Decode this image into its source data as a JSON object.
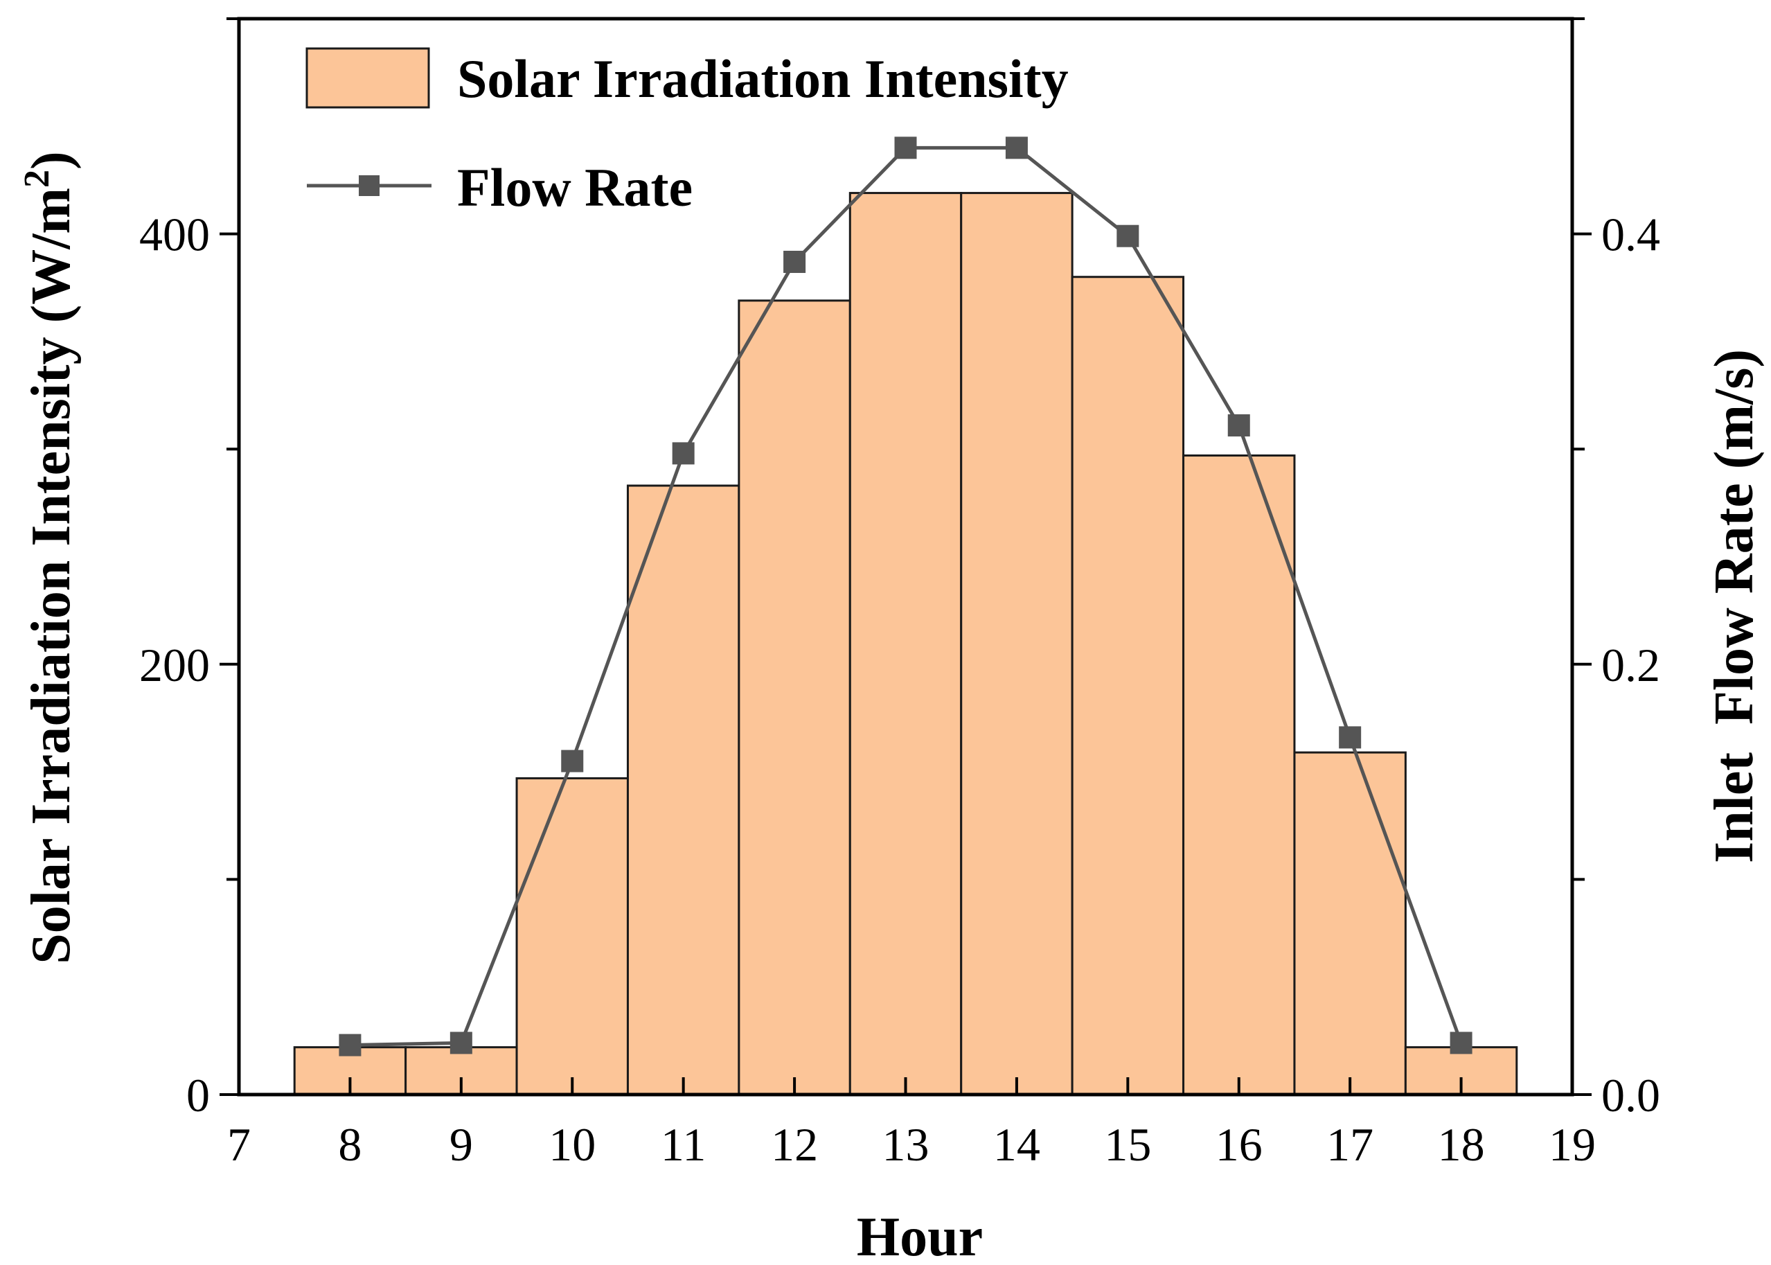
{
  "chart_data": {
    "type": "bar",
    "title": "",
    "xlabel": "Hour",
    "ylabel_left": "Solar Irradiation Intensity (W/m²)",
    "ylabel_left_main": "Solar Irradiation Intensity (W/m",
    "ylabel_left_sup": "2",
    "ylabel_left_close": ")",
    "ylabel_right": "Inlet  Flow Rate (m/s)",
    "xlim": [
      7,
      19
    ],
    "ylim_left": [
      0,
      500
    ],
    "ylim_right": [
      0,
      0.5
    ],
    "x_ticks": [
      "7",
      "8",
      "9",
      "10",
      "11",
      "12",
      "13",
      "14",
      "15",
      "16",
      "17",
      "18",
      "19"
    ],
    "y_left_ticks": [
      "0",
      "200",
      "400"
    ],
    "y_right_ticks": [
      "0.0",
      "0.2",
      "0.4"
    ],
    "categories": [
      8,
      9,
      10,
      11,
      12,
      13,
      14,
      15,
      16,
      17,
      18
    ],
    "series": [
      {
        "name": "Solar Irradiation Intensity",
        "kind": "bar",
        "axis": "left",
        "values": [
          22,
          22,
          147,
          283,
          369,
          419,
          419,
          380,
          297,
          159,
          22
        ]
      },
      {
        "name": "Flow Rate",
        "kind": "line",
        "axis": "right",
        "marker": "square",
        "values": [
          0.023,
          0.024,
          0.155,
          0.298,
          0.387,
          0.44,
          0.44,
          0.399,
          0.311,
          0.166,
          0.024
        ]
      }
    ],
    "legend": {
      "position": "top-left",
      "entries": [
        "Solar Irradiation Intensity",
        "Flow Rate"
      ]
    },
    "colors": {
      "bar_fill": "#fcc598",
      "bar_stroke": "#1a1a1a",
      "line": "#555555",
      "marker": "#555555",
      "axis": "#000000"
    }
  }
}
